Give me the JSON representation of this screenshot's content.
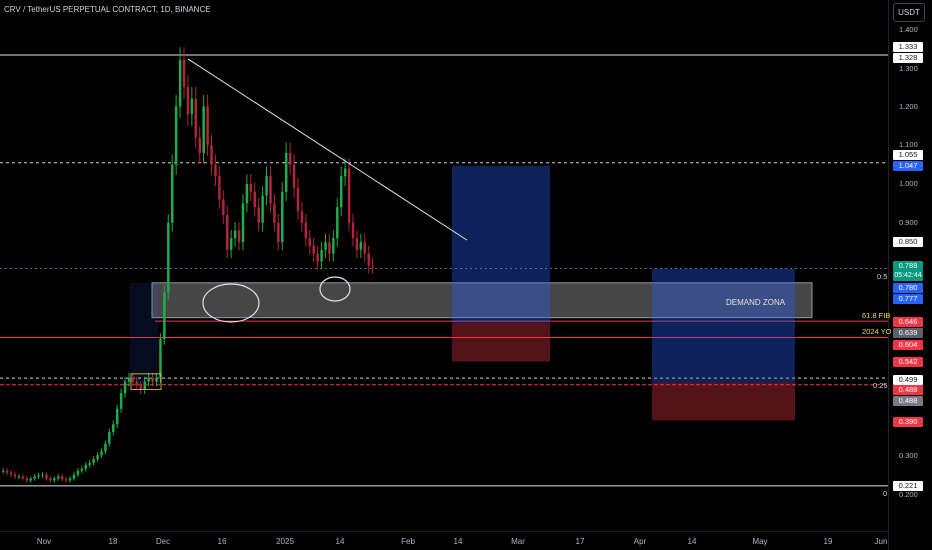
{
  "header": {
    "symbol_title": "CRV / TetherUS PERPETUAL CONTRACT, 1D, BINANCE",
    "currency_button": "USDT"
  },
  "y_axis": {
    "ticks": [
      {
        "label": "1.400",
        "value": 1.4
      },
      {
        "label": "1.300",
        "value": 1.3
      },
      {
        "label": "1.200",
        "value": 1.2
      },
      {
        "label": "1.100",
        "value": 1.1
      },
      {
        "label": "1.000",
        "value": 1.0
      },
      {
        "label": "0.900",
        "value": 0.9
      },
      {
        "label": "0.300",
        "value": 0.3
      },
      {
        "label": "0.200",
        "value": 0.2
      }
    ]
  },
  "x_axis": {
    "ticks": [
      "Nov",
      "18",
      "Dec",
      "16",
      "2025",
      "14",
      "Feb",
      "14",
      "Mar",
      "17",
      "Apr",
      "14",
      "May",
      "19",
      "Jun"
    ]
  },
  "price_labels": [
    {
      "text": "1.333",
      "bg": "#ffffff",
      "fg": "#131722"
    },
    {
      "text": "1.328",
      "bg": "#ffffff",
      "fg": "#131722"
    },
    {
      "text": "1.055",
      "bg": "#ffffff",
      "fg": "#131722"
    },
    {
      "text": "1.047",
      "bg": "#2962ff",
      "fg": "#ffffff"
    },
    {
      "text": "0.850",
      "bg": "#ffffff",
      "fg": "#131722"
    },
    {
      "text": "0.788",
      "bg": "#089981",
      "fg": "#ffffff"
    },
    {
      "text": "05:42:44",
      "bg": "#089981",
      "fg": "#ffffff"
    },
    {
      "text": "0.780",
      "bg": "#2962ff",
      "fg": "#ffffff"
    },
    {
      "text": "0.777",
      "bg": "#2962ff",
      "fg": "#ffffff"
    },
    {
      "text": "0.646",
      "bg": "#f23645",
      "fg": "#ffffff"
    },
    {
      "text": "0.639",
      "bg": "#5d606b",
      "fg": "#ffffff"
    },
    {
      "text": "0.604",
      "bg": "#f23645",
      "fg": "#ffffff"
    },
    {
      "text": "0.542",
      "bg": "#f23645",
      "fg": "#ffffff"
    },
    {
      "text": "0.499",
      "bg": "#ffffff",
      "fg": "#131722"
    },
    {
      "text": "0.488",
      "bg": "#f23645",
      "fg": "#ffffff"
    },
    {
      "text": "0.488",
      "bg": "#787b86",
      "fg": "#ffffff"
    },
    {
      "text": "0.390",
      "bg": "#f23645",
      "fg": "#ffffff"
    },
    {
      "text": "0.221",
      "bg": "#ffffff",
      "fg": "#131722"
    }
  ],
  "fib_labels": [
    {
      "text": "0.5",
      "color": "#d1d4dc"
    },
    {
      "text": "61.8 FIB",
      "color": "#f7d64a"
    },
    {
      "text": "2024 YO",
      "color": "#f7d64a"
    },
    {
      "text": "0.25",
      "color": "#d1d4dc"
    },
    {
      "text": "0",
      "color": "#d1d4dc"
    }
  ],
  "annotations": {
    "demand_zone": "DEMAND ZONA"
  },
  "colors": {
    "up": "#089981",
    "down": "#f23645",
    "candle_up": "#22ab4a",
    "candle_down": "#b2263a",
    "long_profit": "#2962ff",
    "long_loss": "#f23645"
  },
  "chart_data": {
    "type": "candlestick",
    "symbol": "CRV / TetherUS PERPETUAL CONTRACT",
    "interval": "1D",
    "exchange": "BINANCE",
    "ylim": [
      0.17,
      1.42
    ],
    "last_price": 0.788,
    "countdown": "05:42:44",
    "close": [
      0.26,
      0.255,
      0.25,
      0.245,
      0.245,
      0.24,
      0.235,
      0.24,
      0.245,
      0.248,
      0.25,
      0.24,
      0.235,
      0.24,
      0.245,
      0.238,
      0.235,
      0.24,
      0.25,
      0.26,
      0.265,
      0.275,
      0.28,
      0.29,
      0.3,
      0.31,
      0.33,
      0.36,
      0.38,
      0.42,
      0.46,
      0.49,
      0.5,
      0.49,
      0.48,
      0.47,
      0.49,
      0.5,
      0.49,
      0.5,
      0.6,
      0.72,
      0.9,
      1.05,
      1.2,
      1.32,
      1.25,
      1.18,
      1.22,
      1.12,
      1.08,
      1.2,
      1.1,
      1.05,
      1.02,
      0.96,
      0.92,
      0.83,
      0.86,
      0.88,
      0.85,
      0.95,
      1.0,
      0.98,
      0.94,
      0.9,
      0.97,
      1.02,
      0.95,
      0.9,
      0.85,
      0.98,
      1.08,
      1.05,
      0.99,
      0.93,
      0.9,
      0.86,
      0.84,
      0.82,
      0.8,
      0.83,
      0.85,
      0.82,
      0.86,
      0.94,
      1.02,
      1.04,
      0.9,
      0.86,
      0.83,
      0.85,
      0.82,
      0.79,
      0.788
    ],
    "price_levels": [
      1.333,
      1.328,
      1.055,
      1.047,
      0.85,
      0.788,
      0.78,
      0.777,
      0.646,
      0.639,
      0.604,
      0.542,
      0.499,
      0.488,
      0.39,
      0.221
    ],
    "trendline": [
      [
        8,
        1.328
      ],
      [
        95,
        0.85
      ]
    ],
    "long_positions": [
      {
        "entry": 0.642,
        "target": 1.047,
        "stop": 0.542
      },
      {
        "entry": 0.488,
        "target": 0.782,
        "stop": 0.39
      }
    ],
    "zones": [
      {
        "label": "DEMAND ZONA",
        "low": 0.655,
        "high": 0.745
      }
    ],
    "fib_levels": [
      {
        "label": "0.5",
        "value": 0.782
      },
      {
        "label": "61.8 FIB",
        "value": 0.646
      },
      {
        "label": "2024 YO",
        "value": 0.639
      },
      {
        "label": "0.25",
        "value": 0.482
      },
      {
        "label": "0",
        "value": 0.221
      }
    ]
  }
}
